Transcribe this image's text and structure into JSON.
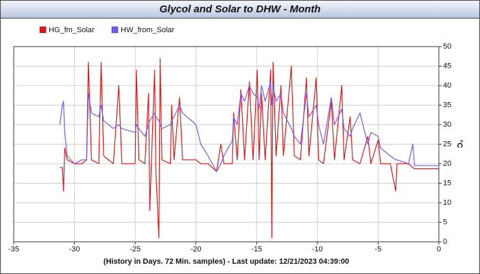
{
  "chart_data": {
    "type": "line",
    "title": "Glycol and Solar to DHW - Month",
    "xlabel": "(History in Days. 72 Min. samples) - Last update: 12/21/2023 04:39:00",
    "ylabel": "°C",
    "grid": true,
    "xlim": [
      -35,
      0
    ],
    "xticks": [
      -35,
      -30,
      -25,
      -20,
      -15,
      -10,
      -5,
      0
    ],
    "ylim": [
      0,
      50
    ],
    "yticks": [
      0,
      5,
      10,
      15,
      20,
      25,
      30,
      35,
      40,
      45,
      50
    ],
    "x": [
      -31.2,
      -31.0,
      -30.9,
      -30.8,
      -30.6,
      -30.0,
      -29.4,
      -29.0,
      -28.85,
      -28.6,
      -28.0,
      -27.8,
      -27.6,
      -26.8,
      -26.35,
      -26.1,
      -25.0,
      -24.9,
      -24.7,
      -24.2,
      -23.9,
      -23.8,
      -23.4,
      -23.3,
      -23.05,
      -22.95,
      -22.8,
      -22.1,
      -22.0,
      -21.8,
      -21.35,
      -21.1,
      -20.0,
      -19.6,
      -19.0,
      -18.3,
      -17.95,
      -17.7,
      -17.0,
      -16.9,
      -16.6,
      -16.3,
      -16.0,
      -15.6,
      -15.3,
      -14.95,
      -14.8,
      -14.6,
      -14.3,
      -13.85,
      -13.75,
      -13.65,
      -13.4,
      -13.0,
      -12.8,
      -12.15,
      -11.9,
      -11.4,
      -10.9,
      -10.7,
      -10.1,
      -9.9,
      -9.5,
      -8.85,
      -8.6,
      -8.0,
      -7.8,
      -7.3,
      -7.1,
      -6.5,
      -5.85,
      -5.6,
      -5.0,
      -4.8,
      -4.0,
      -3.55,
      -3.45,
      -2.5,
      -2.15,
      -2.0,
      0
    ],
    "series": [
      {
        "name": "HG_fm_Solar",
        "color": "#e01414",
        "values": [
          19,
          19,
          13,
          24,
          21,
          20,
          20,
          21,
          46,
          21,
          20,
          46,
          22,
          20,
          40,
          20,
          20,
          44,
          21,
          20,
          38,
          8,
          44,
          18,
          1,
          47,
          21,
          20,
          35,
          21,
          37,
          21,
          21,
          20,
          20,
          18,
          25,
          20,
          20,
          33,
          21,
          39,
          21,
          41,
          21,
          44,
          21,
          38,
          21,
          44,
          1,
          46,
          22,
          40,
          22,
          45,
          22,
          21,
          42,
          22,
          42,
          21,
          20,
          36,
          21,
          40,
          21,
          32,
          21,
          20,
          27,
          20,
          26,
          20,
          20,
          13,
          20,
          20,
          19,
          18.7,
          18.7
        ]
      },
      {
        "name": "HW_from_Solar",
        "color": "#7b55f0",
        "values": [
          30,
          35,
          36,
          28,
          22,
          20,
          21,
          21,
          38,
          33,
          32,
          35,
          31,
          29,
          30,
          29,
          28,
          30,
          29,
          27,
          30,
          31,
          33,
          32,
          31,
          30,
          29,
          30,
          31,
          32,
          35,
          33,
          30,
          25,
          22,
          18,
          20,
          22,
          26,
          32,
          30,
          38,
          36,
          40,
          38,
          37,
          34,
          40,
          36,
          41,
          35,
          40,
          36,
          38,
          33,
          29,
          27,
          25,
          38,
          32,
          35,
          30,
          25,
          37,
          30,
          34,
          29,
          27,
          29,
          33,
          25,
          28,
          27,
          24,
          22,
          21,
          21,
          20,
          25,
          19.5,
          19.5
        ]
      }
    ]
  }
}
